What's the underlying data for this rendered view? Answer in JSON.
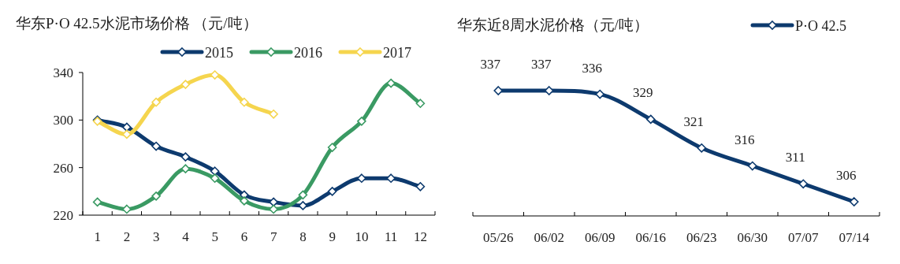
{
  "chart_data": [
    {
      "type": "line",
      "title": "华东P·O 42.5水泥市场价格 （元/吨）",
      "categories": [
        "1",
        "2",
        "3",
        "4",
        "5",
        "6",
        "7",
        "8",
        "9",
        "10",
        "11",
        "12"
      ],
      "ylim": [
        220,
        340
      ],
      "yticks": [
        220,
        260,
        300,
        340
      ],
      "legend": "top right",
      "marker": "diamond",
      "line_style": "solid",
      "series": [
        {
          "name": "2015",
          "color": "#0d3a6e",
          "values": [
            300,
            294,
            278,
            269,
            257,
            237,
            231,
            228,
            240,
            251,
            251,
            244
          ]
        },
        {
          "name": "2016",
          "color": "#3a9a63",
          "values": [
            231,
            225,
            236,
            259,
            251,
            232,
            225,
            237,
            277,
            299,
            331,
            314
          ]
        },
        {
          "name": "2017",
          "color": "#f5d54e",
          "values": [
            299,
            288,
            315,
            330,
            338,
            315,
            305,
            null,
            null,
            null,
            null,
            null
          ]
        }
      ]
    },
    {
      "type": "line",
      "title": "华东近8周水泥价格（元/吨）",
      "categories": [
        "05/26",
        "06/02",
        "06/09",
        "06/16",
        "06/23",
        "06/30",
        "07/07",
        "07/14"
      ],
      "legend": "top right",
      "marker": "diamond",
      "line_style": "solid",
      "data_labels": true,
      "tick_labels": "x",
      "series": [
        {
          "name": "P·O 42.5",
          "color": "#0d3a6e",
          "values": [
            337,
            337,
            336,
            329,
            321,
            316,
            311,
            306
          ]
        }
      ]
    }
  ]
}
